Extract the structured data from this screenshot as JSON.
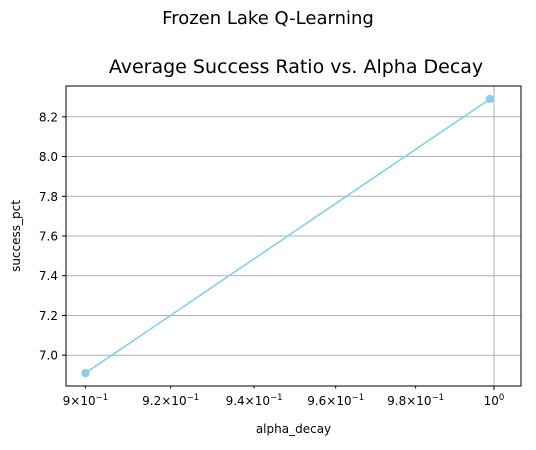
{
  "chart_data": {
    "type": "line",
    "suptitle": "Frozen Lake Q-Learning",
    "title": "Average Success Ratio vs. Alpha Decay",
    "xlabel": "alpha_decay",
    "ylabel": "success_pct",
    "xscale": "log",
    "xlim": [
      0.8955,
      1.007
    ],
    "ylim": [
      6.845,
      8.355
    ],
    "x_ticks": [
      {
        "value": 0.9,
        "base": "9×10",
        "exp": "−1"
      },
      {
        "value": 0.92,
        "base": "9.2×10",
        "exp": "−1"
      },
      {
        "value": 0.94,
        "base": "9.4×10",
        "exp": "−1"
      },
      {
        "value": 0.96,
        "base": "9.6×10",
        "exp": "−1"
      },
      {
        "value": 0.98,
        "base": "9.8×10",
        "exp": "−1"
      },
      {
        "value": 1.0,
        "base": "10",
        "exp": "0"
      }
    ],
    "y_ticks": [
      {
        "value": 7.0,
        "label": "7.0"
      },
      {
        "value": 7.2,
        "label": "7.2"
      },
      {
        "value": 7.4,
        "label": "7.4"
      },
      {
        "value": 7.6,
        "label": "7.6"
      },
      {
        "value": 7.8,
        "label": "7.8"
      },
      {
        "value": 8.0,
        "label": "8.0"
      },
      {
        "value": 8.2,
        "label": "8.2"
      }
    ],
    "grid": true,
    "series": [
      {
        "name": "success_pct",
        "color": "#87ceeb",
        "x": [
          0.9,
          0.999
        ],
        "y": [
          6.91,
          8.29
        ]
      }
    ]
  }
}
